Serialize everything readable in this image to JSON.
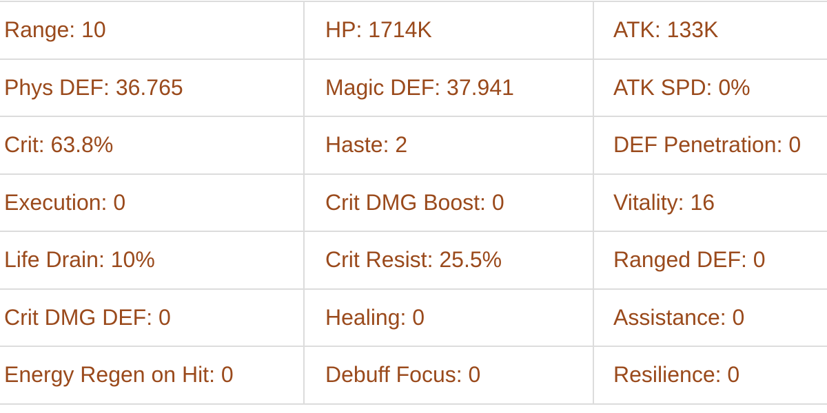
{
  "text_color": "#9a4a1c",
  "rows": [
    [
      "Range: 10",
      "HP: 1714K",
      "ATK: 133K"
    ],
    [
      "Phys DEF: 36.765",
      "Magic DEF: 37.941",
      "ATK SPD: 0%"
    ],
    [
      "Crit: 63.8%",
      "Haste: 2",
      "DEF Penetration: 0"
    ],
    [
      "Execution: 0",
      "Crit DMG Boost: 0",
      "Vitality: 16"
    ],
    [
      "Life Drain: 10%",
      "Crit Resist: 25.5%",
      "Ranged DEF: 0"
    ],
    [
      "Crit DMG DEF: 0",
      "Healing: 0",
      "Assistance: 0"
    ],
    [
      "Energy Regen on Hit: 0",
      "Debuff Focus: 0",
      "Resilience: 0"
    ]
  ]
}
